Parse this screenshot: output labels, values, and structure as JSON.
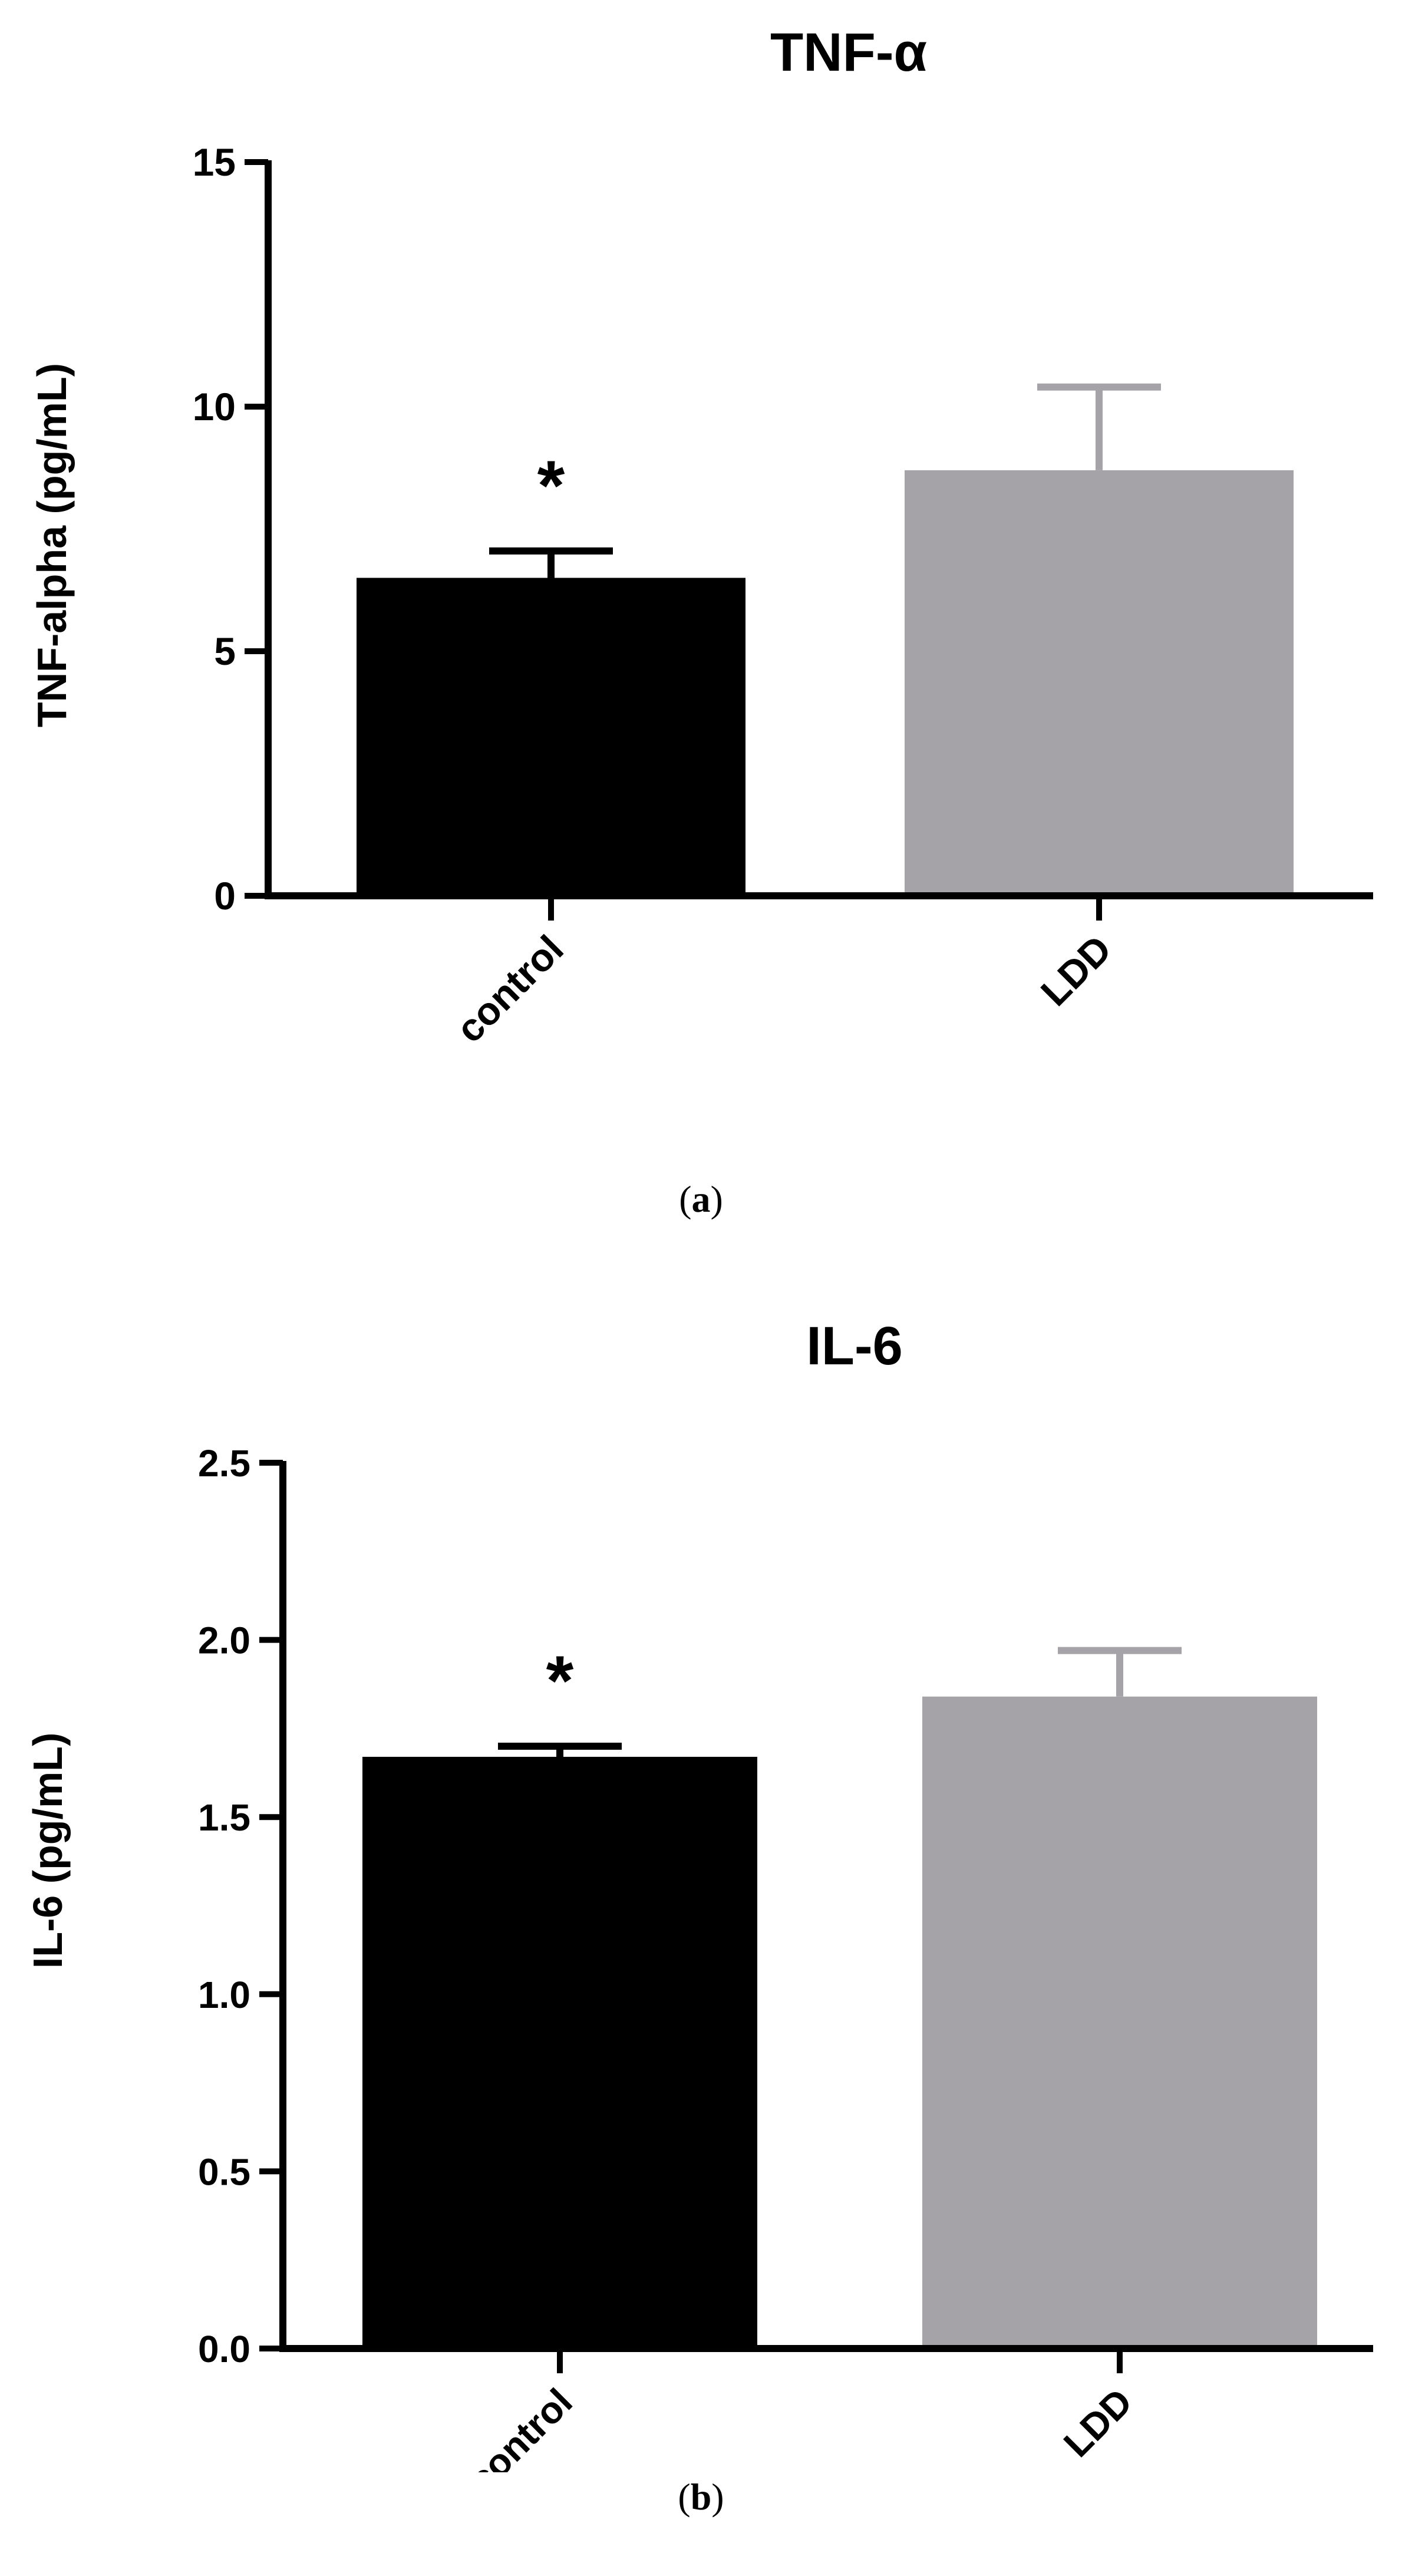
{
  "chart_data": [
    {
      "type": "bar",
      "title": "TNF-α",
      "ylabel": "TNF-alpha (pg/mL)",
      "xlabel": "",
      "categories": [
        "control",
        "LDD"
      ],
      "values": [
        6.5,
        8.7
      ],
      "errors": [
        0.55,
        1.7
      ],
      "colors": [
        "#000000",
        "#a5a3a8"
      ],
      "ylim": [
        0,
        15
      ],
      "yticks": [
        "0",
        "5",
        "10",
        "15"
      ],
      "yticks_values": [
        0,
        5,
        10,
        15
      ],
      "annotations": [
        {
          "category": "control",
          "text": "*"
        }
      ],
      "grid": false,
      "caption": {
        "open": "(",
        "letter": "a",
        "close": ")"
      }
    },
    {
      "type": "bar",
      "title": "IL-6",
      "ylabel": "IL-6 (pg/mL)",
      "xlabel": "",
      "categories": [
        "control",
        "LDD"
      ],
      "values": [
        1.67,
        1.84
      ],
      "errors": [
        0.03,
        0.13
      ],
      "colors": [
        "#000000",
        "#a5a3a8"
      ],
      "ylim": [
        0,
        2.5
      ],
      "yticks": [
        "0.0",
        "0.5",
        "1.0",
        "1.5",
        "2.0",
        "2.5"
      ],
      "yticks_values": [
        0,
        0.5,
        1.0,
        1.5,
        2.0,
        2.5
      ],
      "annotations": [
        {
          "category": "control",
          "text": "*"
        }
      ],
      "grid": false,
      "caption": {
        "open": "(",
        "letter": "b",
        "close": ")"
      }
    }
  ]
}
